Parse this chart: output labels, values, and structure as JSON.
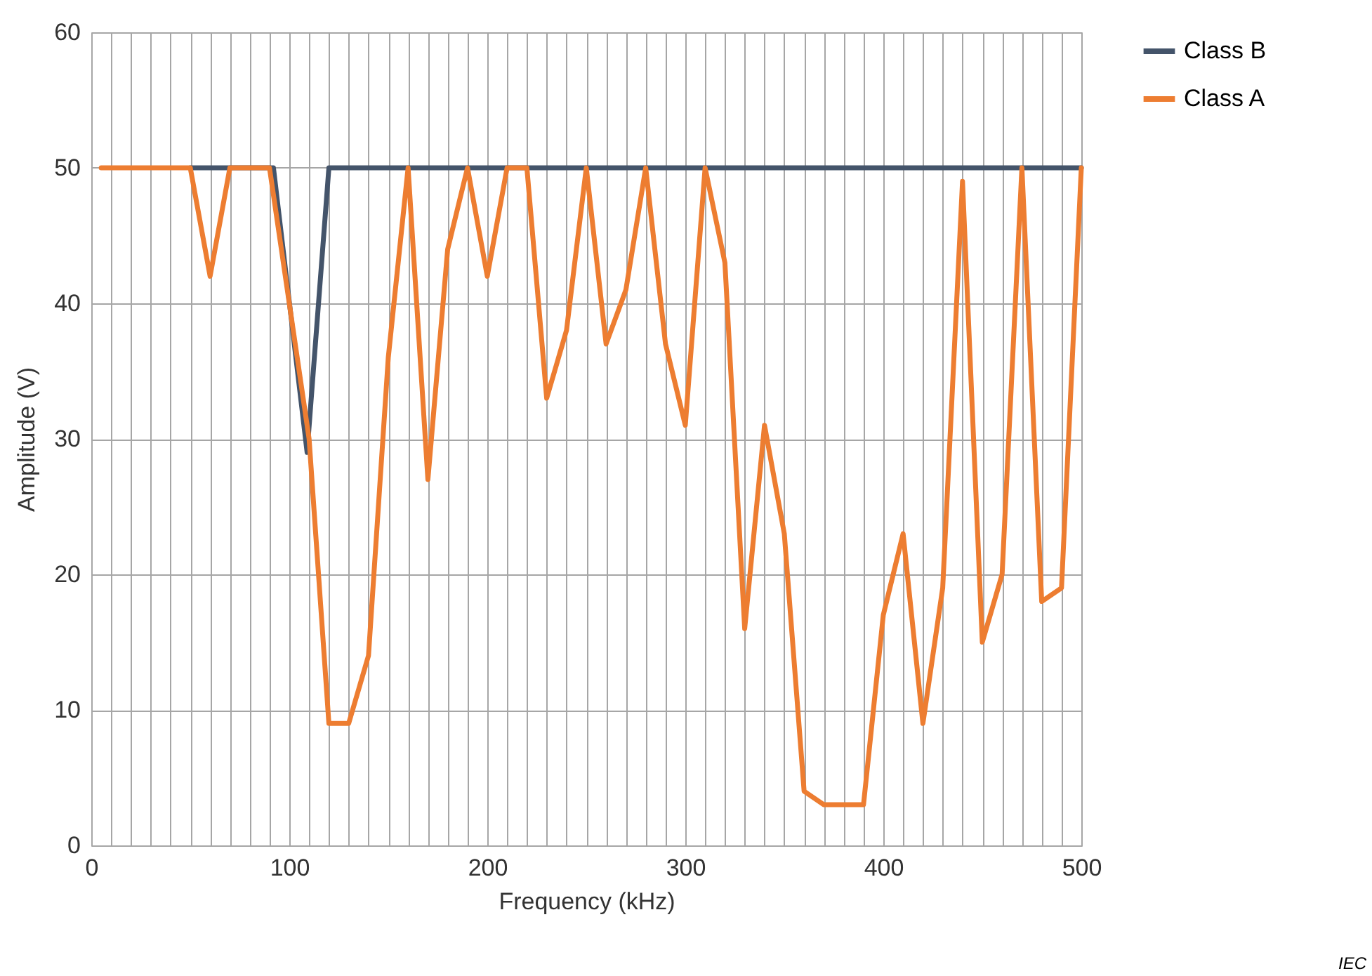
{
  "chart_data": {
    "type": "line",
    "xlabel": "Frequency  (kHz)",
    "ylabel": "Amplitude  (V)",
    "x": [
      5,
      10,
      20,
      30,
      40,
      50,
      60,
      70,
      80,
      90,
      100,
      110,
      120,
      130,
      140,
      150,
      160,
      170,
      180,
      190,
      200,
      210,
      220,
      230,
      240,
      250,
      260,
      270,
      280,
      290,
      300,
      310,
      320,
      330,
      340,
      350,
      360,
      370,
      380,
      390,
      400,
      410,
      420,
      430,
      440,
      450,
      460,
      470,
      480,
      490,
      500
    ],
    "series": [
      {
        "name": "Class B",
        "color": "#44546a",
        "x": [
          50,
          60,
          92,
          109,
          120,
          500
        ],
        "values": [
          50,
          50,
          50,
          29,
          50,
          50
        ]
      },
      {
        "name": "Class A",
        "color": "#ed7d31",
        "values": [
          50,
          50,
          50,
          50,
          50,
          50,
          42,
          50,
          50,
          50,
          40,
          30,
          9,
          9,
          14,
          36,
          50,
          27,
          44,
          50,
          42,
          50,
          50,
          33,
          38,
          50,
          37,
          41,
          50,
          37,
          31,
          50,
          43,
          16,
          31,
          23,
          4,
          3,
          3,
          3,
          17,
          23,
          9,
          19,
          49,
          15,
          20,
          50,
          18,
          19,
          50
        ]
      }
    ],
    "xlim": [
      0,
      500
    ],
    "xticks": [
      0,
      {
        "value": 10,
        "label": null
      },
      {
        "value": 20,
        "label": null
      },
      {
        "value": 30,
        "label": null
      },
      {
        "value": 40,
        "label": null
      },
      {
        "value": 50,
        "label": null
      },
      {
        "value": 60,
        "label": null
      },
      {
        "value": 70,
        "label": null
      },
      {
        "value": 80,
        "label": null
      },
      {
        "value": 90,
        "label": null
      },
      100,
      {
        "value": 110,
        "label": null
      },
      {
        "value": 120,
        "label": null
      },
      {
        "value": 130,
        "label": null
      },
      {
        "value": 140,
        "label": null
      },
      {
        "value": 150,
        "label": null
      },
      {
        "value": 160,
        "label": null
      },
      {
        "value": 170,
        "label": null
      },
      {
        "value": 180,
        "label": null
      },
      {
        "value": 190,
        "label": null
      },
      200,
      {
        "value": 210,
        "label": null
      },
      {
        "value": 220,
        "label": null
      },
      {
        "value": 230,
        "label": null
      },
      {
        "value": 240,
        "label": null
      },
      {
        "value": 250,
        "label": null
      },
      {
        "value": 260,
        "label": null
      },
      {
        "value": 270,
        "label": null
      },
      {
        "value": 280,
        "label": null
      },
      {
        "value": 290,
        "label": null
      },
      300,
      {
        "value": 310,
        "label": null
      },
      {
        "value": 320,
        "label": null
      },
      {
        "value": 330,
        "label": null
      },
      {
        "value": 340,
        "label": null
      },
      {
        "value": 350,
        "label": null
      },
      {
        "value": 360,
        "label": null
      },
      {
        "value": 370,
        "label": null
      },
      {
        "value": 380,
        "label": null
      },
      {
        "value": 390,
        "label": null
      },
      400,
      {
        "value": 410,
        "label": null
      },
      {
        "value": 420,
        "label": null
      },
      {
        "value": 430,
        "label": null
      },
      {
        "value": 440,
        "label": null
      },
      {
        "value": 450,
        "label": null
      },
      {
        "value": 460,
        "label": null
      },
      {
        "value": 470,
        "label": null
      },
      {
        "value": 480,
        "label": null
      },
      {
        "value": 490,
        "label": null
      },
      500
    ],
    "ylim": [
      0,
      60
    ],
    "yticks": [
      0,
      10,
      20,
      30,
      40,
      50,
      60
    ],
    "grid": true,
    "legend": "right",
    "line_style": "solid",
    "marker": "none",
    "annotations": [
      "IEC"
    ]
  }
}
